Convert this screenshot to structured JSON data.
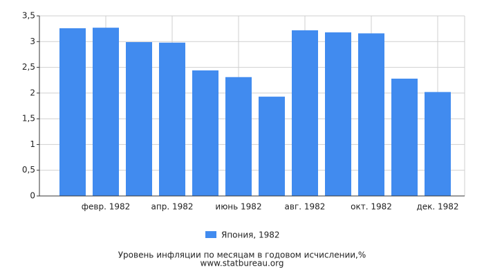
{
  "chart_data": {
    "type": "bar",
    "title": "Уровень инфляции по месяцам в годовом исчислении,%",
    "subtitle": "www.statbureau.org",
    "categories": [
      null,
      "февр. 1982",
      null,
      "апр. 1982",
      null,
      "июнь 1982",
      null,
      "авг. 1982",
      null,
      "окт. 1982",
      null,
      "дек. 1982"
    ],
    "series": [
      {
        "name": "Япония, 1982",
        "color": "#418bef",
        "values": [
          3.26,
          3.27,
          2.99,
          2.98,
          2.44,
          2.31,
          1.93,
          3.22,
          3.18,
          3.16,
          2.28,
          2.02
        ]
      }
    ],
    "ylim": [
      0,
      3.5
    ],
    "yticks": [
      0,
      {
        "value": 0.5,
        "label": "0,5"
      },
      1,
      {
        "value": 1.5,
        "label": "1,5"
      },
      2,
      {
        "value": 2.5,
        "label": "2,5"
      },
      3,
      {
        "value": 3.5,
        "label": "3,5"
      }
    ],
    "grid": true
  }
}
